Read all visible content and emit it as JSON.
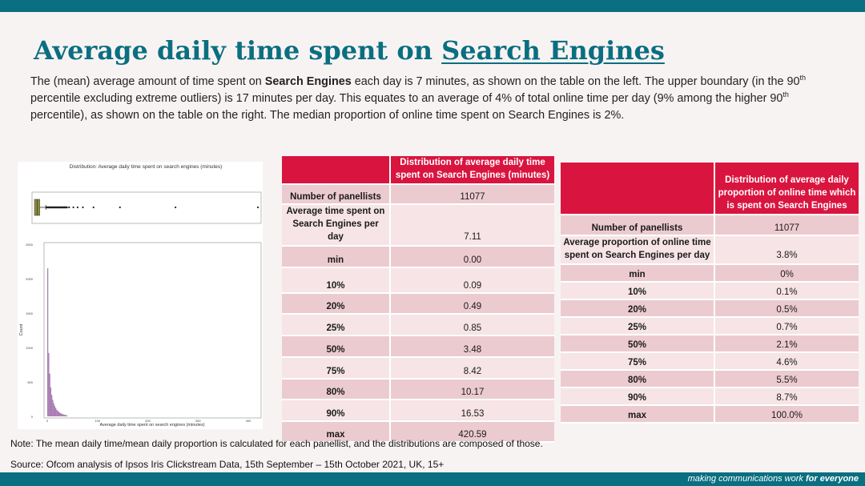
{
  "slide": {
    "title_prefix": "Average daily time spent on ",
    "title_link": "Search Engines",
    "intro": {
      "t1": "The (mean) average amount of time spent on ",
      "b1": "Search Engines",
      "t2": " each day is 7 minutes, as shown on the table on the left. The upper boundary (in the 90",
      "s1": "th",
      "t3": " percentile excluding extreme outliers) is 17 minutes per day. This equates to an average of 4% of total online time per day (9% among the higher 90",
      "s2": "th",
      "t4": " percentile), as shown on the table on the right. The median proportion of online time spent on Search Engines is 2%."
    },
    "note": "Note: The mean daily time/mean daily proportion is calculated for each panellist, and the distributions are composed of those.",
    "source": "Source: Ofcom analysis of Ipsos Iris Clickstream Data, 15th September – 15th October 2021, UK, 15+",
    "footer": {
      "tagline": "making communications work ",
      "tagline_bold": "for everyone"
    },
    "colors": {
      "brand_teal": "#0a6f80",
      "header_red": "#d9153f",
      "row_dark": "#eccbd0",
      "row_light": "#f6e4e6",
      "hist_purple": "#8b4f97",
      "box_olive": "#8c8c3a"
    }
  },
  "chart_data": {
    "type": "histogram",
    "title": "Distribution: Average daily time spent on search engines (minutes)",
    "xlabel": "Average daily time spent on search engines (minutes)",
    "ylabel": "Count",
    "xlim": [
      0,
      420.59
    ],
    "ylim": [
      0,
      2500
    ],
    "x_ticks": [
      "0",
      "100",
      "200",
      "300",
      "400"
    ],
    "y_ticks": [
      "0",
      "500",
      "1000",
      "1500",
      "2000",
      "2500"
    ],
    "x": [
      1,
      3,
      5,
      7,
      9,
      11,
      13,
      15,
      17,
      19,
      21,
      23,
      25,
      27,
      29,
      31,
      33,
      35,
      37,
      39
    ],
    "values": [
      2150,
      920,
      620,
      420,
      310,
      240,
      190,
      150,
      120,
      95,
      80,
      65,
      55,
      45,
      38,
      32,
      26,
      22,
      18,
      15
    ],
    "boxplot": {
      "q1": 0.85,
      "median": 3.48,
      "q3": 8.42,
      "whisker_high": 19.9,
      "outliers": [
        25,
        30,
        36,
        42,
        48,
        55,
        60,
        64,
        72,
        80,
        90,
        110,
        160,
        265,
        420.59
      ]
    }
  },
  "table_left": {
    "header": "Distribution of average daily time spent on  Search Engines (minutes)",
    "rows": [
      {
        "label": "Number of panellists",
        "value": "11077"
      },
      {
        "label": "Average time spent on Search Engines per day",
        "value": "7.11"
      },
      {
        "label": "min",
        "value": "0.00"
      },
      {
        "label": "10%",
        "value": "0.09"
      },
      {
        "label": "20%",
        "value": "0.49"
      },
      {
        "label": "25%",
        "value": "0.85"
      },
      {
        "label": "50%",
        "value": "3.48"
      },
      {
        "label": "75%",
        "value": "8.42"
      },
      {
        "label": "80%",
        "value": "10.17"
      },
      {
        "label": "90%",
        "value": "16.53"
      },
      {
        "label": "max",
        "value": "420.59"
      }
    ]
  },
  "table_right": {
    "header": "Distribution of average daily proportion of online time which is spent on Search Engines",
    "rows": [
      {
        "label": "Number of panellists",
        "value": "11077"
      },
      {
        "label": "Average proportion of online time spent on Search Engines per day",
        "value": "3.8%"
      },
      {
        "label": "min",
        "value": "0%"
      },
      {
        "label": "10%",
        "value": "0.1%"
      },
      {
        "label": "20%",
        "value": "0.5%"
      },
      {
        "label": "25%",
        "value": "0.7%"
      },
      {
        "label": "50%",
        "value": "2.1%"
      },
      {
        "label": "75%",
        "value": "4.6%"
      },
      {
        "label": "80%",
        "value": "5.5%"
      },
      {
        "label": "90%",
        "value": "8.7%"
      },
      {
        "label": "max",
        "value": "100.0%"
      }
    ]
  }
}
